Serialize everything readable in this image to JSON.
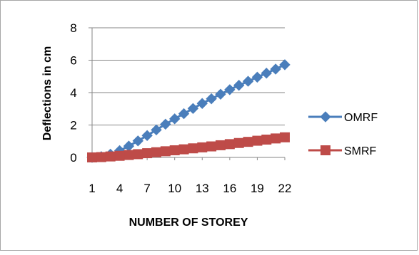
{
  "chart_data": {
    "type": "line",
    "title": "",
    "xlabel": "NUMBER OF STOREY",
    "ylabel": "Deflections in cm",
    "x": [
      1,
      2,
      3,
      4,
      5,
      6,
      7,
      8,
      9,
      10,
      11,
      12,
      13,
      14,
      15,
      16,
      17,
      18,
      19,
      20,
      21,
      22
    ],
    "xticks": [
      "1",
      "4",
      "7",
      "10",
      "13",
      "16",
      "19",
      "22"
    ],
    "yticks": [
      "0",
      "2",
      "4",
      "6",
      "8"
    ],
    "ylim": [
      0,
      8
    ],
    "grid": "horizontal",
    "legend": "right",
    "series": [
      {
        "name": "OMRF",
        "color": "#4a7ebb",
        "marker": "diamond",
        "values": [
          0.0,
          0.05,
          0.2,
          0.42,
          0.7,
          1.02,
          1.35,
          1.7,
          2.05,
          2.38,
          2.7,
          3.02,
          3.33,
          3.62,
          3.9,
          4.18,
          4.45,
          4.7,
          4.95,
          5.2,
          5.45,
          5.72
        ]
      },
      {
        "name": "SMRF",
        "color": "#be4b48",
        "marker": "square",
        "values": [
          0.0,
          0.02,
          0.06,
          0.1,
          0.15,
          0.2,
          0.26,
          0.32,
          0.38,
          0.44,
          0.5,
          0.56,
          0.62,
          0.68,
          0.75,
          0.82,
          0.89,
          0.96,
          1.03,
          1.1,
          1.17,
          1.24
        ]
      }
    ]
  }
}
